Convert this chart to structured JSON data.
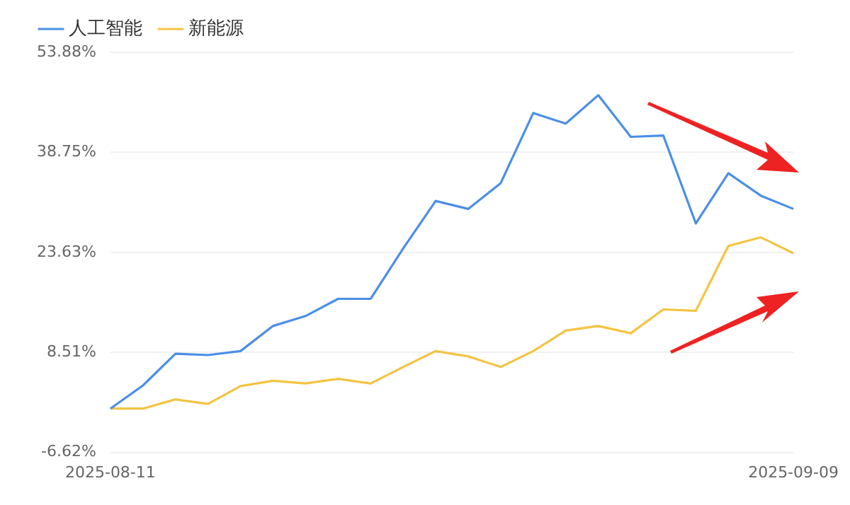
{
  "chart_data": {
    "type": "line",
    "categories": [
      "2025-08-11",
      null,
      null,
      null,
      null,
      null,
      null,
      null,
      null,
      null,
      null,
      null,
      null,
      null,
      null,
      null,
      null,
      null,
      null,
      null,
      null,
      "2025-09-09"
    ],
    "series": [
      {
        "name": "人工智能",
        "color": "#4a8fe8",
        "values": [
          0,
          3.5,
          8.3,
          8.1,
          8.7,
          12.5,
          14.0,
          16.6,
          16.6,
          24.2,
          31.4,
          30.2,
          34.1,
          44.7,
          43.1,
          47.4,
          41.1,
          41.3,
          28.0,
          35.6,
          32.2,
          30.2
        ]
      },
      {
        "name": "新能源",
        "color": "#f5c342",
        "values": [
          0,
          0,
          1.4,
          0.7,
          3.4,
          4.2,
          3.8,
          4.5,
          3.8,
          6.3,
          8.7,
          7.9,
          6.3,
          8.7,
          11.8,
          12.5,
          11.4,
          15.0,
          14.8,
          24.6,
          25.9,
          23.5
        ]
      }
    ],
    "ylim": [
      -6.62,
      53.88
    ],
    "yticks": [
      {
        "value": -6.62,
        "label": "-6.62%"
      },
      {
        "value": 8.51,
        "label": "8.51%"
      },
      {
        "value": 23.63,
        "label": "23.63%"
      },
      {
        "value": 38.75,
        "label": "38.75%"
      },
      {
        "value": 53.88,
        "label": "53.88%"
      }
    ],
    "grid": "y",
    "legend": "top left",
    "marker": "none",
    "line_style": "solid"
  }
}
